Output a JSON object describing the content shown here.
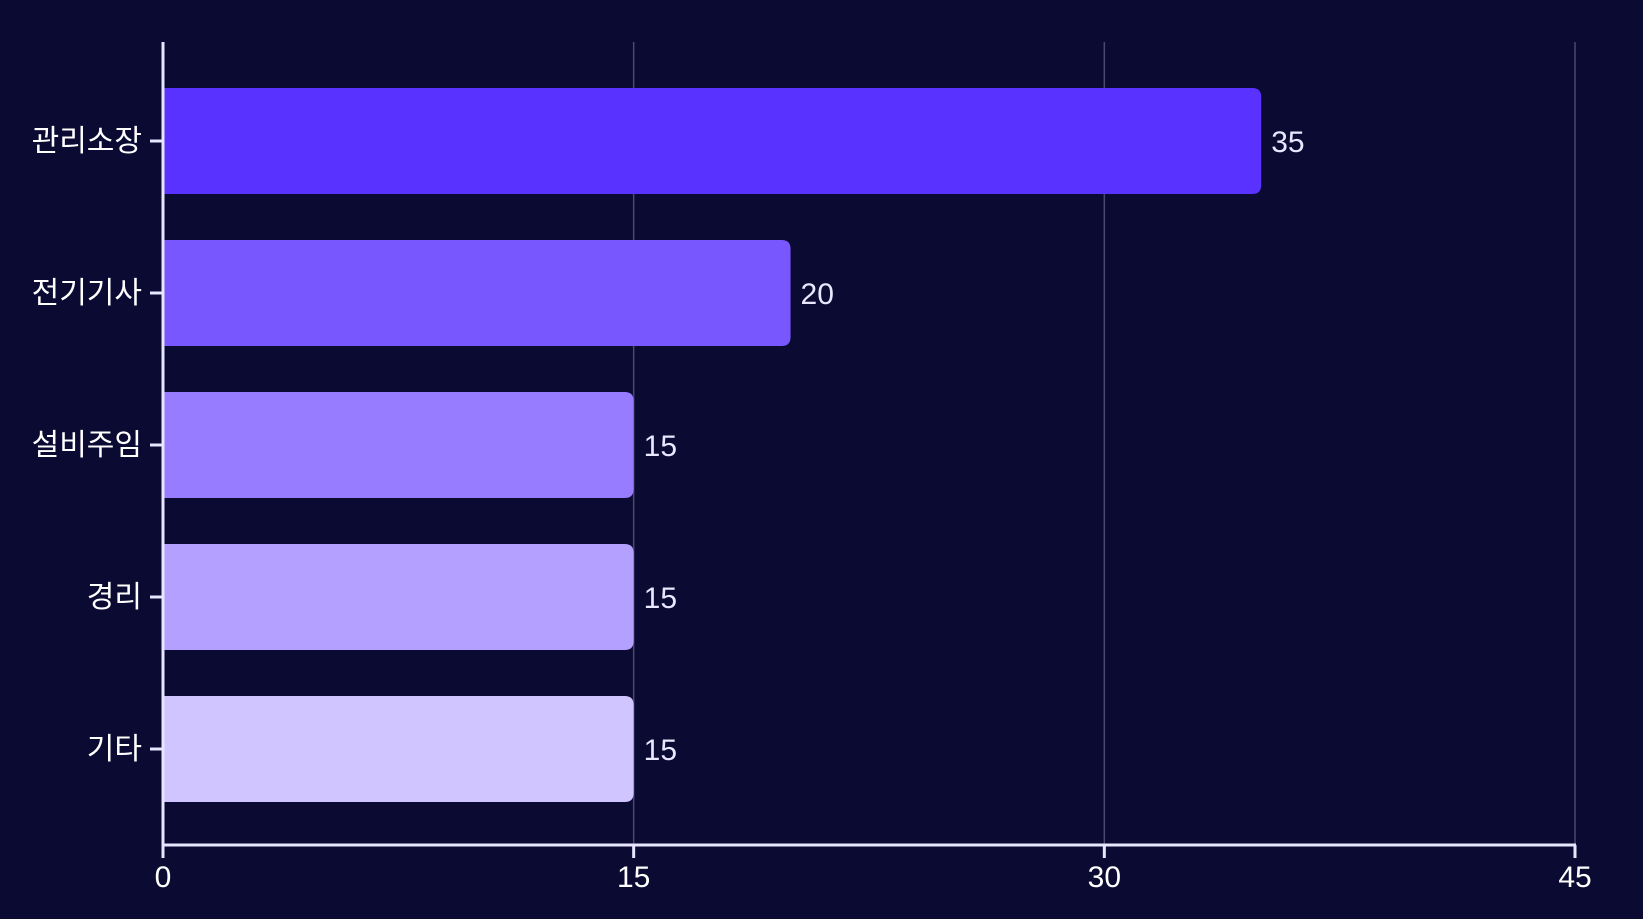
{
  "chart_data": {
    "type": "bar",
    "orientation": "horizontal",
    "title": "",
    "xlabel": "",
    "ylabel": "",
    "categories": [
      "관리소장",
      "전기기사",
      "설비주임",
      "경리",
      "기타"
    ],
    "values": [
      35,
      20,
      15,
      15,
      15
    ],
    "value_labels": [
      "35",
      "20",
      "15",
      "15",
      "15"
    ],
    "xlim": [
      0,
      45
    ],
    "xticks": [
      0,
      15,
      30,
      45
    ],
    "xtick_labels": [
      "0",
      "15",
      "30",
      "45"
    ],
    "grid": "vertical",
    "legend": "none",
    "colors": {
      "background": "#0b0a33",
      "bars": [
        "#5a32ff",
        "#7857ff",
        "#977cff",
        "#b4a1ff",
        "#d0c5ff"
      ],
      "axis": "#e8e6ff",
      "grid": "#4a4870",
      "text": "#ffffff"
    }
  }
}
